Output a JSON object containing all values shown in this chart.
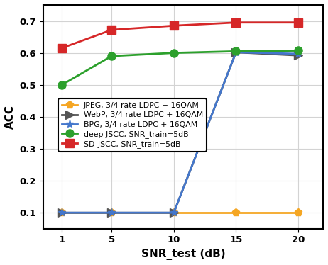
{
  "snr_test": [
    1,
    5,
    10,
    15,
    20
  ],
  "jpeg": [
    0.1,
    0.1,
    0.1,
    0.1,
    0.1
  ],
  "webp": [
    0.1,
    0.1,
    0.1,
    0.602,
    0.592
  ],
  "bpg": [
    0.1,
    0.1,
    0.1,
    0.602,
    0.597
  ],
  "deep_jscc": [
    0.5,
    0.59,
    0.6,
    0.605,
    0.607
  ],
  "sd_jscc": [
    0.615,
    0.672,
    0.685,
    0.695,
    0.695
  ],
  "colors": {
    "jpeg": "#F5A623",
    "webp": "#555555",
    "bpg": "#4477CC",
    "deep_jscc": "#2CA02C",
    "sd_jscc": "#D62728"
  },
  "markers": {
    "jpeg": "p",
    "webp": ">",
    "bpg": "*",
    "deep_jscc": "o",
    "sd_jscc": "s"
  },
  "labels": {
    "jpeg": "JPEG, 3/4 rate LDPC + 16QAM",
    "webp": "WebP, 3/4 rate LDPC + 16QAM",
    "bpg": "BPG, 3/4 rate LDPC + 16QAM",
    "deep_jscc": "deep JSCC, SNR_train=5dB",
    "sd_jscc": "SD-JSCC, SNR_train=5dB"
  },
  "xlabel": "SNR_test (dB)",
  "ylabel": "ACC",
  "ylim": [
    0.05,
    0.75
  ],
  "xlim": [
    -0.5,
    22
  ],
  "yticks": [
    0.1,
    0.2,
    0.3,
    0.4,
    0.5,
    0.6,
    0.7
  ],
  "xticks": [
    1,
    5,
    10,
    15,
    20
  ],
  "linewidth": 2.0,
  "markersize": 8
}
